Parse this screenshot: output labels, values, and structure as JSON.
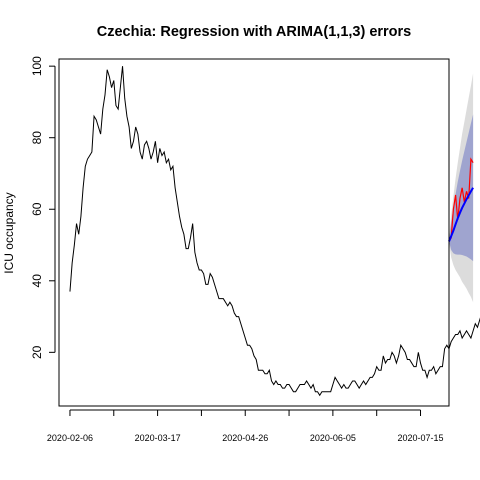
{
  "chart_data": {
    "type": "line",
    "title": "Czechia: Regression with ARIMA(1,1,3) errors",
    "xlabel": "",
    "ylabel": "ICU occupancy",
    "xlim": [
      "2020-02-01",
      "2020-07-28"
    ],
    "ylim": [
      5,
      102
    ],
    "x_ticks": [
      "2020-02-06",
      "2020-03-17",
      "2020-04-26",
      "2020-06-05",
      "2020-07-15"
    ],
    "y_ticks": [
      20,
      40,
      60,
      80,
      100
    ],
    "grid": false,
    "legend": "none",
    "colors": {
      "observed": "#000000",
      "actual_after": "#ff0000",
      "forecast_mean": "#0000ff",
      "pi80": "#9fa4cf",
      "pi95": "#dcdcdc"
    },
    "observed": {
      "start_date": "2020-02-06",
      "values": [
        37,
        45,
        50,
        56,
        53,
        58,
        66,
        72,
        74,
        75,
        76,
        86,
        85,
        83,
        81,
        88,
        92,
        99,
        97,
        94,
        96,
        89,
        88,
        94,
        100,
        91,
        86,
        83,
        77,
        79,
        83,
        81,
        76,
        74,
        78,
        79,
        77,
        74,
        76,
        79,
        73,
        77,
        75,
        76,
        73,
        74,
        71,
        72,
        66,
        62,
        58,
        55,
        53,
        49,
        49,
        52,
        56,
        48,
        45,
        43,
        43,
        42,
        39,
        39,
        42,
        41,
        39,
        37,
        35,
        35,
        35,
        34,
        33,
        34,
        33,
        31,
        30,
        30,
        28,
        26,
        24,
        22,
        22,
        21,
        19,
        18,
        15,
        15,
        15,
        14,
        14,
        15,
        12,
        11,
        12,
        11,
        11,
        10,
        10,
        11,
        11,
        10,
        9,
        9,
        10,
        11,
        11,
        11,
        12,
        11,
        10,
        11,
        9,
        9,
        8,
        9,
        9,
        9,
        9,
        9,
        11,
        13,
        12,
        11,
        10,
        11,
        10,
        10,
        11,
        12,
        12,
        11,
        10,
        11,
        12,
        11,
        12,
        13,
        13,
        14,
        16,
        15,
        15,
        19,
        17,
        18,
        18,
        20,
        19,
        17,
        19,
        22,
        21,
        20,
        18,
        18,
        17,
        16,
        16,
        20,
        17,
        15,
        15,
        13,
        15,
        15,
        16,
        14,
        15,
        16,
        16,
        21,
        22,
        21,
        23,
        24,
        25,
        25,
        26,
        24,
        25,
        26,
        25,
        24,
        26,
        28,
        27,
        29,
        31,
        31,
        32,
        32,
        36,
        36,
        36,
        41,
        40,
        42,
        44,
        47,
        51
      ]
    },
    "actual_after": {
      "start_date": "2020-07-28",
      "values": [
        51,
        52,
        60,
        64,
        57,
        63,
        66,
        62,
        65,
        63,
        74,
        73
      ]
    },
    "forecast": {
      "start_date": "2020-07-28",
      "mean": [
        51,
        52.5,
        54,
        55.8,
        57.5,
        59,
        60.4,
        61.6,
        62.8,
        63.9,
        65,
        66
      ],
      "lo80": [
        51,
        48.6,
        47.7,
        47.4,
        47.3,
        47.3,
        47.2,
        47.0,
        46.8,
        46.4,
        46.0,
        45.5
      ],
      "hi80": [
        51,
        56.4,
        60.3,
        64.2,
        67.7,
        70.7,
        73.6,
        76.2,
        78.8,
        81.4,
        84.0,
        86.5
      ],
      "lo95": [
        51,
        46.5,
        44.4,
        43.0,
        42.0,
        41.0,
        39.7,
        38.8,
        37.8,
        36.6,
        35.5,
        34.0
      ],
      "hi95": [
        51,
        58.5,
        63.6,
        68.6,
        73.0,
        77.0,
        81.1,
        84.4,
        87.8,
        91.2,
        94.5,
        98.0
      ]
    }
  }
}
